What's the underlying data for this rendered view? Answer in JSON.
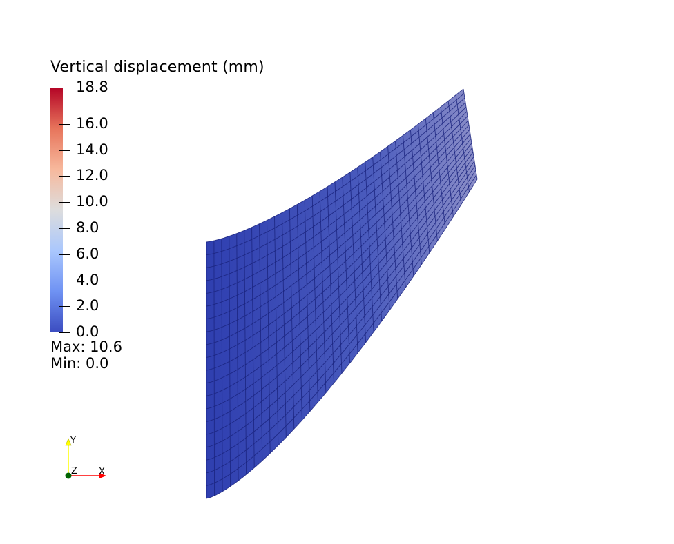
{
  "colorbar": {
    "title": "Vertical displacement (mm)",
    "min": 0.0,
    "max": 18.8,
    "colormap": [
      "#3b4cc0",
      "#6f92f3",
      "#aac7fd",
      "#dddddd",
      "#f7b89c",
      "#e7745b",
      "#b40426"
    ],
    "ticks": [
      {
        "value": 18.8,
        "label": "18.8"
      },
      {
        "value": 16.0,
        "label": "16.0"
      },
      {
        "value": 14.0,
        "label": "14.0"
      },
      {
        "value": 12.0,
        "label": "12.0"
      },
      {
        "value": 10.0,
        "label": "10.0"
      },
      {
        "value": 8.0,
        "label": "8.0"
      },
      {
        "value": 6.0,
        "label": "6.0"
      },
      {
        "value": 4.0,
        "label": "4.0"
      },
      {
        "value": 2.0,
        "label": "2.0"
      },
      {
        "value": 0.0,
        "label": "0.0"
      }
    ]
  },
  "stats": {
    "max_text": "Max: 10.6",
    "min_text": "Min: 0.0"
  },
  "orientation_axes": {
    "x_label": "X",
    "y_label": "Y",
    "z_label": "Z",
    "x_color": "#ff0000",
    "y_color": "#ffff00",
    "z_color": "#006400"
  },
  "mesh": {
    "edge_color": "#1a237e",
    "surface_color_low": "#2f3fb0",
    "surface_color_high": "#8c8fc8",
    "columns": 34,
    "rows": 20
  }
}
